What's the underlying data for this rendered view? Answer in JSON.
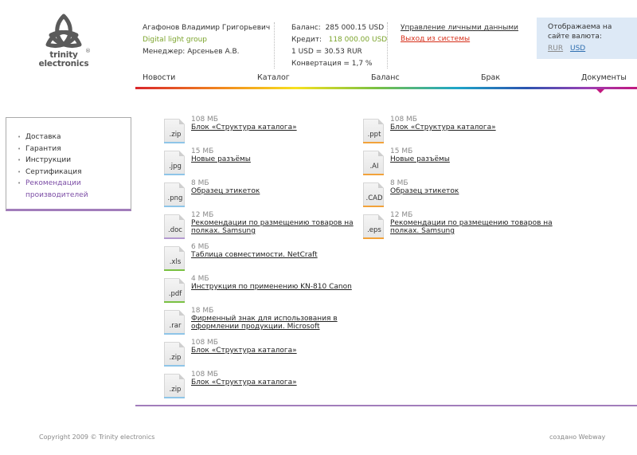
{
  "logo": {
    "line1": "trinity",
    "line2": "electronics",
    "reg": "®"
  },
  "user": {
    "name": "Агафонов Владимир Григорьевич",
    "company": "Digital light group",
    "manager": "Менеджер: Арсеньев А.В."
  },
  "balance": {
    "balance_label": "Баланс:",
    "balance_value": "285 000.15 USD",
    "credit_label": "Кредит:",
    "credit_value": "118 000.00 USD",
    "rate": "1 USD = 30.53 RUR",
    "conversion": "Конвертация = 1,7 %"
  },
  "links": {
    "profile": "Управление личными данными",
    "logout": "Выход из системы"
  },
  "currency": {
    "title": "Отображаема на сайте валюта:",
    "rur": "RUR",
    "usd": "USD"
  },
  "nav": [
    "Новости",
    "Каталог",
    "Баланс",
    "Брак",
    "Документы"
  ],
  "sidebar": [
    "Доставка",
    "Гарантия",
    "Инструкции",
    "Сертификация",
    "Рекомендации производителей"
  ],
  "files_left": [
    {
      "ext": ".zip",
      "size": "108 МБ",
      "name": "Блок «Структура каталога»",
      "color": "#8ec5e8"
    },
    {
      "ext": ".jpg",
      "size": "15 МБ",
      "name": "Новые разъёмы",
      "color": "#8ec5e8"
    },
    {
      "ext": ".png",
      "size": "8 МБ",
      "name": "Образец этикеток",
      "color": "#8ec5e8"
    },
    {
      "ext": ".doc",
      "size": "12 МБ",
      "name": "Рекомендации по размещению товаров на полках. Samsung",
      "color": "#b49ad0"
    },
    {
      "ext": ".xls",
      "size": "6 МБ",
      "name": "Таблица совместимости. NetCraft",
      "color": "#7ac142"
    },
    {
      "ext": ".pdf",
      "size": "4 МБ",
      "name": "Инструкция по применению KN-810 Canon",
      "color": "#7ac142"
    },
    {
      "ext": ".rar",
      "size": "18 МБ",
      "name": "Фирменный знак для использования в оформлении продукции. Microsoft",
      "color": "#8ec5e8"
    },
    {
      "ext": ".zip",
      "size": "108 МБ",
      "name": "Блок «Структура каталога»",
      "color": "#8ec5e8"
    },
    {
      "ext": ".zip",
      "size": "108 МБ",
      "name": "Блок «Структура каталога»",
      "color": "#8ec5e8"
    }
  ],
  "files_right": [
    {
      "ext": ".ppt",
      "size": "108 МБ",
      "name": "Блок «Структура каталога»",
      "color": "#f2a23a"
    },
    {
      "ext": ".AI",
      "size": "15 МБ",
      "name": "Новые разъёмы",
      "color": "#f2a23a"
    },
    {
      "ext": ".CAD",
      "size": "8 МБ",
      "name": "Образец этикеток",
      "color": "#f2a23a"
    },
    {
      "ext": ".eps",
      "size": "12 МБ",
      "name": "Рекомендации по размещению товаров на полках. Samsung",
      "color": "#f2a23a"
    }
  ],
  "footer": {
    "copyright": "Copyright 2009 © Trinity electronics",
    "credit": "создано Webway"
  }
}
